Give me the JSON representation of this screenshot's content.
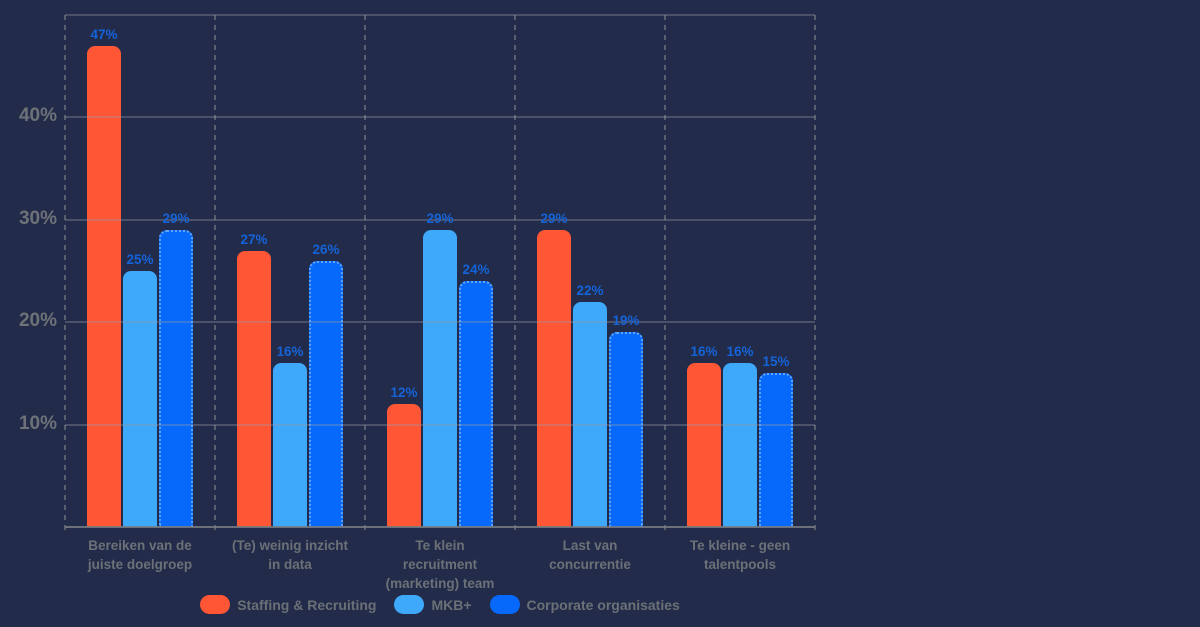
{
  "chart_data": {
    "type": "bar",
    "title": "",
    "categories": [
      "Bereiken van de\njuiste doelgroep",
      "(Te) weinig inzicht\nin data",
      "Te klein\nrecruitment\n(marketing) team",
      "Last van\nconcurrentie",
      "Te kleine - geen\ntalentpools"
    ],
    "series": [
      {
        "name": "Staffing & Recruiting",
        "color": "#FF5636",
        "values": [
          47,
          27,
          12,
          29,
          16
        ]
      },
      {
        "name": "MKB+",
        "color": "#3EA9FA",
        "values": [
          25,
          16,
          29,
          22,
          16
        ]
      },
      {
        "name": "Corporate organisaties",
        "color": "#0769FB",
        "values": [
          29,
          26,
          24,
          19,
          15
        ]
      }
    ],
    "value_label_suffix": "%",
    "y_ticks": [
      "10%",
      "20%",
      "30%",
      "40%"
    ],
    "y_tick_values": [
      10,
      20,
      30,
      40
    ],
    "ylim": [
      0,
      50
    ],
    "grid": true,
    "legend_position": "bottom"
  },
  "colors": {
    "background": "#222C4A",
    "grid": "#94999F",
    "axis_text": "#6E7278",
    "category_text": "#6C7077",
    "legend_text": "#6B7076",
    "value_label": "#1563D8"
  }
}
